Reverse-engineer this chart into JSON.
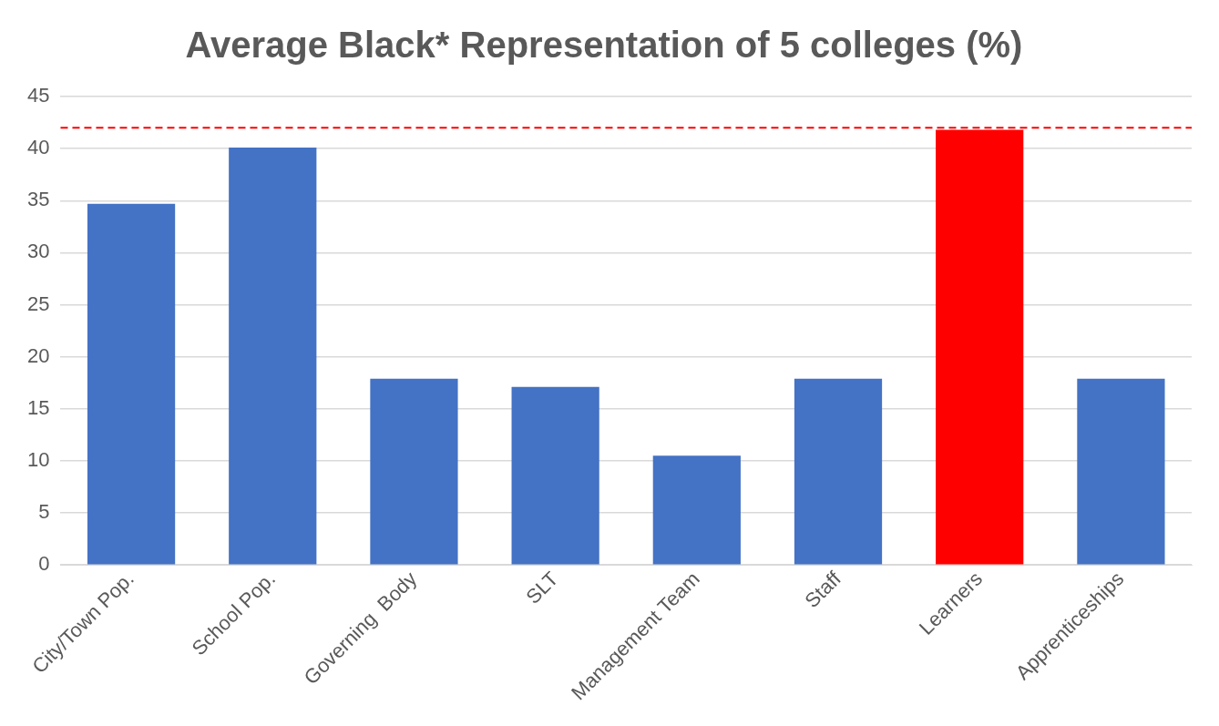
{
  "chart_data": {
    "type": "bar",
    "title": "Average Black* Representation of 5 colleges (%)",
    "categories": [
      "City/Town Pop.",
      "School Pop.",
      "Governing  Body",
      "SLT",
      "Management Team",
      "Staff",
      "Learners",
      "Apprenticeships"
    ],
    "values": [
      34.7,
      40.1,
      17.9,
      17.1,
      10.5,
      17.9,
      41.8,
      17.9
    ],
    "colors": [
      "#4472c4",
      "#4472c4",
      "#4472c4",
      "#4472c4",
      "#4472c4",
      "#4472c4",
      "#ff0000",
      "#4472c4"
    ],
    "ylim": [
      0,
      45
    ],
    "yticks": [
      0,
      5,
      10,
      15,
      20,
      25,
      30,
      35,
      40,
      45
    ],
    "grid": "y",
    "legend": false,
    "ref_lines": [
      {
        "axis": "y",
        "value": 42,
        "color": "#ff0000",
        "line_style": "dashed"
      }
    ]
  }
}
